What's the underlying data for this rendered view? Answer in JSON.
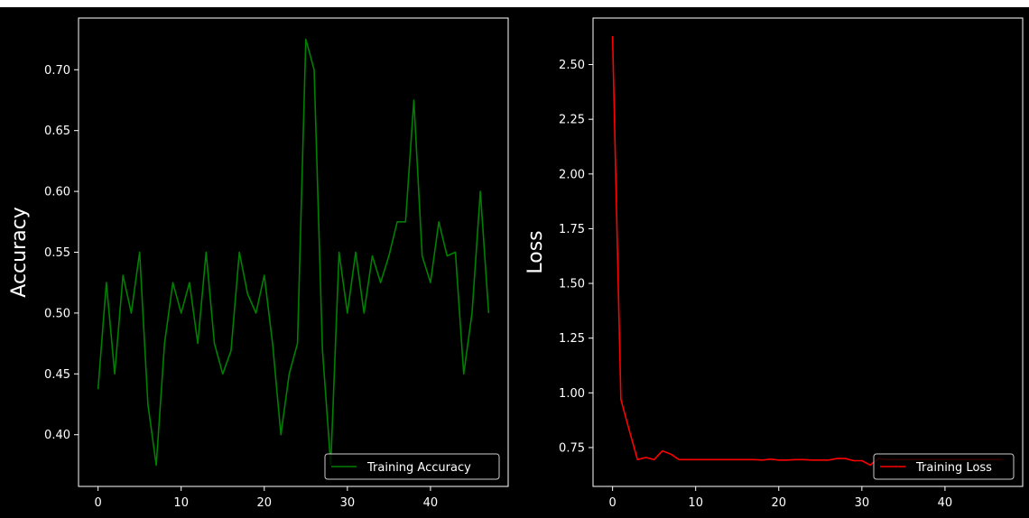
{
  "chart_data": [
    {
      "type": "line",
      "title": "",
      "xlabel": "",
      "ylabel": "Accuracy",
      "xlim": [
        -2.35,
        49.35
      ],
      "ylim": [
        0.3575,
        0.7425
      ],
      "xticks": [
        0,
        10,
        20,
        30,
        40
      ],
      "yticks": [
        0.4,
        0.45,
        0.5,
        0.55,
        0.6,
        0.65,
        0.7
      ],
      "ytick_labels": [
        "0.40",
        "0.45",
        "0.50",
        "0.55",
        "0.60",
        "0.65",
        "0.70"
      ],
      "grid": false,
      "legend_position": "lower right",
      "series": [
        {
          "name": "Training Accuracy",
          "color": "#008000",
          "x": [
            0,
            1,
            2,
            3,
            4,
            5,
            6,
            7,
            8,
            9,
            10,
            11,
            12,
            13,
            14,
            15,
            16,
            17,
            18,
            19,
            20,
            21,
            22,
            23,
            24,
            25,
            26,
            27,
            28,
            29,
            30,
            31,
            32,
            33,
            34,
            35,
            36,
            37,
            38,
            39,
            40,
            41,
            42,
            43,
            44,
            45,
            46,
            47
          ],
          "values": [
            0.4375,
            0.525,
            0.45,
            0.531,
            0.5,
            0.55,
            0.425,
            0.375,
            0.475,
            0.525,
            0.5,
            0.525,
            0.475,
            0.55,
            0.475,
            0.45,
            0.469,
            0.55,
            0.5156,
            0.5,
            0.531,
            0.475,
            0.4,
            0.45,
            0.475,
            0.725,
            0.7,
            0.47,
            0.375,
            0.55,
            0.5,
            0.55,
            0.5,
            0.547,
            0.525,
            0.547,
            0.575,
            0.575,
            0.675,
            0.547,
            0.525,
            0.575,
            0.547,
            0.55,
            0.45,
            0.5,
            0.6,
            0.5
          ]
        }
      ]
    },
    {
      "type": "line",
      "title": "",
      "xlabel": "",
      "ylabel": "Loss",
      "xlim": [
        -2.35,
        49.35
      ],
      "ylim": [
        0.5725,
        2.7125
      ],
      "xticks": [
        0,
        10,
        20,
        30,
        40
      ],
      "yticks": [
        0.75,
        1.0,
        1.25,
        1.5,
        1.75,
        2.0,
        2.25,
        2.5
      ],
      "ytick_labels": [
        "0.75",
        "1.00",
        "1.25",
        "1.50",
        "1.75",
        "2.00",
        "2.25",
        "2.50"
      ],
      "grid": false,
      "legend_position": "lower right",
      "series": [
        {
          "name": "Training Loss",
          "color": "#ff0000",
          "x": [
            0,
            1,
            2,
            3,
            4,
            5,
            6,
            7,
            8,
            9,
            10,
            11,
            12,
            13,
            14,
            15,
            16,
            17,
            18,
            19,
            20,
            21,
            22,
            23,
            24,
            25,
            26,
            27,
            28,
            29,
            30,
            31,
            32,
            33,
            34,
            35,
            36,
            37,
            38,
            39,
            40,
            41,
            42,
            43,
            44,
            45,
            46,
            47
          ],
          "values": [
            2.63,
            0.97,
            0.83,
            0.695,
            0.705,
            0.695,
            0.735,
            0.72,
            0.695,
            0.695,
            0.695,
            0.695,
            0.695,
            0.695,
            0.695,
            0.695,
            0.695,
            0.695,
            0.693,
            0.697,
            0.693,
            0.693,
            0.695,
            0.695,
            0.693,
            0.693,
            0.693,
            0.7,
            0.7,
            0.69,
            0.69,
            0.67,
            0.7,
            0.695,
            0.695,
            0.695,
            0.695,
            0.695,
            0.695,
            0.695,
            0.695,
            0.695,
            0.695,
            0.695,
            0.695,
            0.695,
            0.695,
            0.695
          ]
        }
      ]
    }
  ]
}
